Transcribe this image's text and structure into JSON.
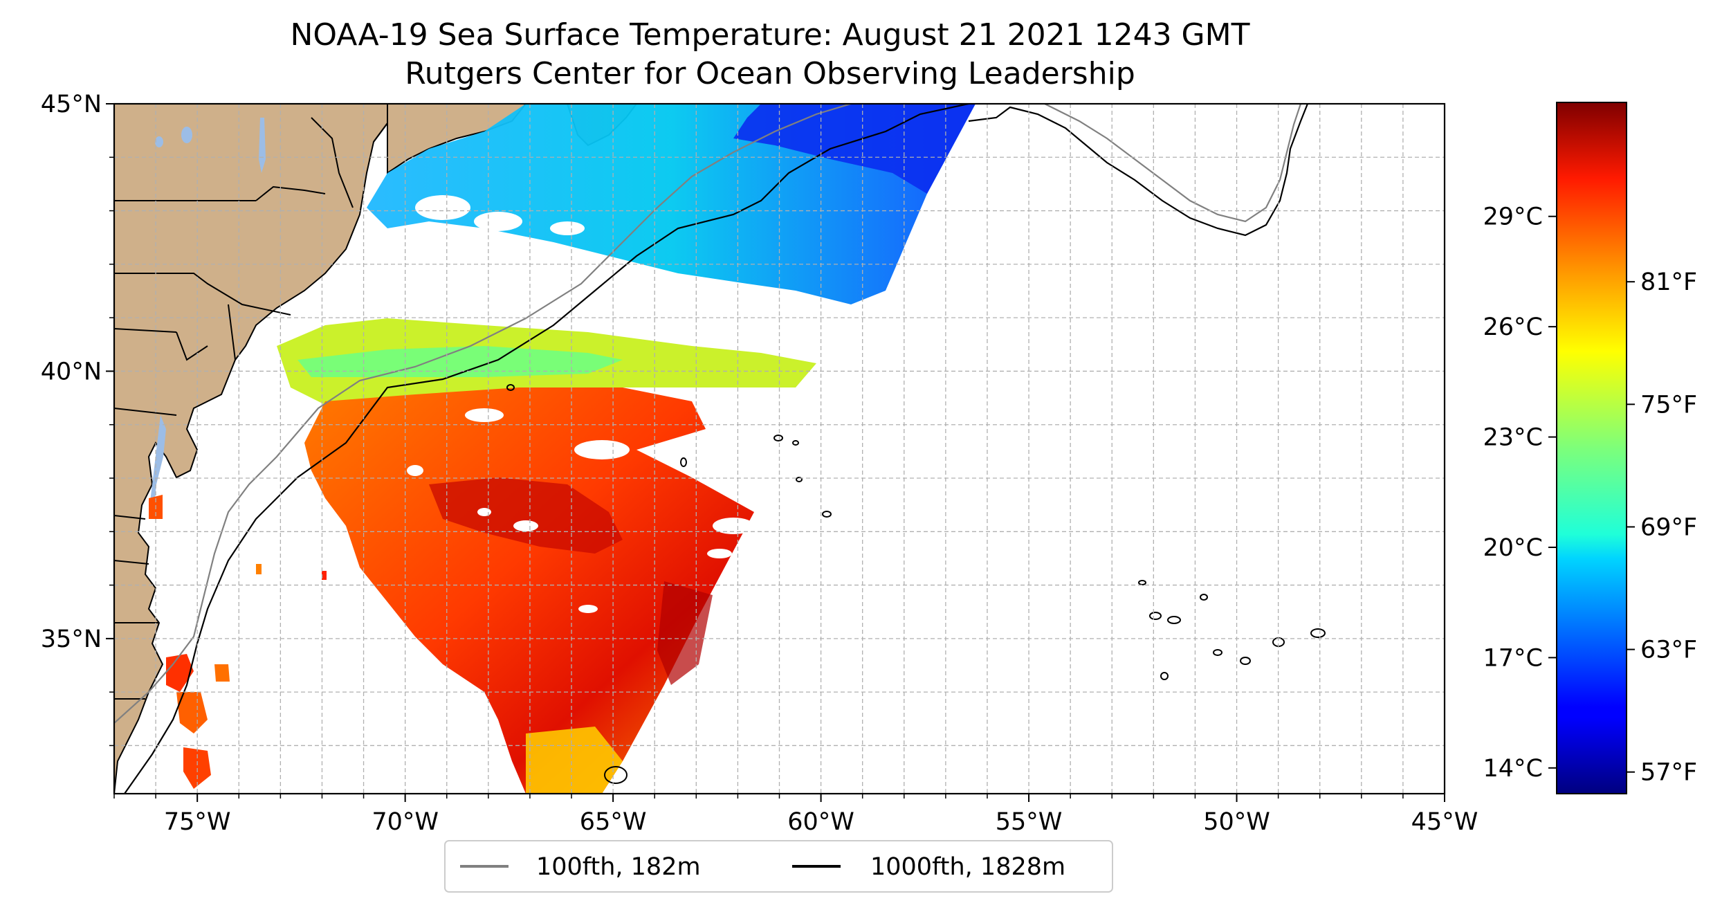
{
  "figure": {
    "title_line1": "NOAA-19 Sea Surface Temperature: August 21 2021 1243 GMT",
    "title_line2": "Rutgers Center for Ocean Observing Leadership"
  },
  "map": {
    "lon_range": [
      -77,
      -45
    ],
    "lat_range": [
      32.1,
      45
    ],
    "lon_ticks": [
      {
        "value": -75,
        "label": "75°W"
      },
      {
        "value": -70,
        "label": "70°W"
      },
      {
        "value": -65,
        "label": "65°W"
      },
      {
        "value": -60,
        "label": "60°W"
      },
      {
        "value": -55,
        "label": "55°W"
      },
      {
        "value": -50,
        "label": "50°W"
      },
      {
        "value": -45,
        "label": "45°W"
      }
    ],
    "lat_ticks": [
      {
        "value": 45,
        "label": "45°N"
      },
      {
        "value": 40,
        "label": "40°N"
      },
      {
        "value": 35,
        "label": "35°N"
      }
    ],
    "gridlines": true,
    "land_color": "#cfb08a",
    "lake_color": "#9cbde6"
  },
  "legend": {
    "placement": "bottom-center",
    "items": [
      {
        "label": "100fth, 182m",
        "color": "#808080"
      },
      {
        "label": "1000fth, 1828m",
        "color": "#000000"
      }
    ]
  },
  "colorbar": {
    "colormap": "jet",
    "range_c": [
      13.3,
      32.1
    ],
    "celsius_ticks": [
      {
        "value": 29,
        "label": "29°C"
      },
      {
        "value": 26,
        "label": "26°C"
      },
      {
        "value": 23,
        "label": "23°C"
      },
      {
        "value": 20,
        "label": "20°C"
      },
      {
        "value": 17,
        "label": "17°C"
      },
      {
        "value": 14,
        "label": "14°C"
      }
    ],
    "fahrenheit_ticks": [
      {
        "value": 81,
        "label": "81°F"
      },
      {
        "value": 75,
        "label": "75°F"
      },
      {
        "value": 69,
        "label": "69°F"
      },
      {
        "value": 63,
        "label": "63°F"
      },
      {
        "value": 57,
        "label": "57°F"
      }
    ]
  }
}
